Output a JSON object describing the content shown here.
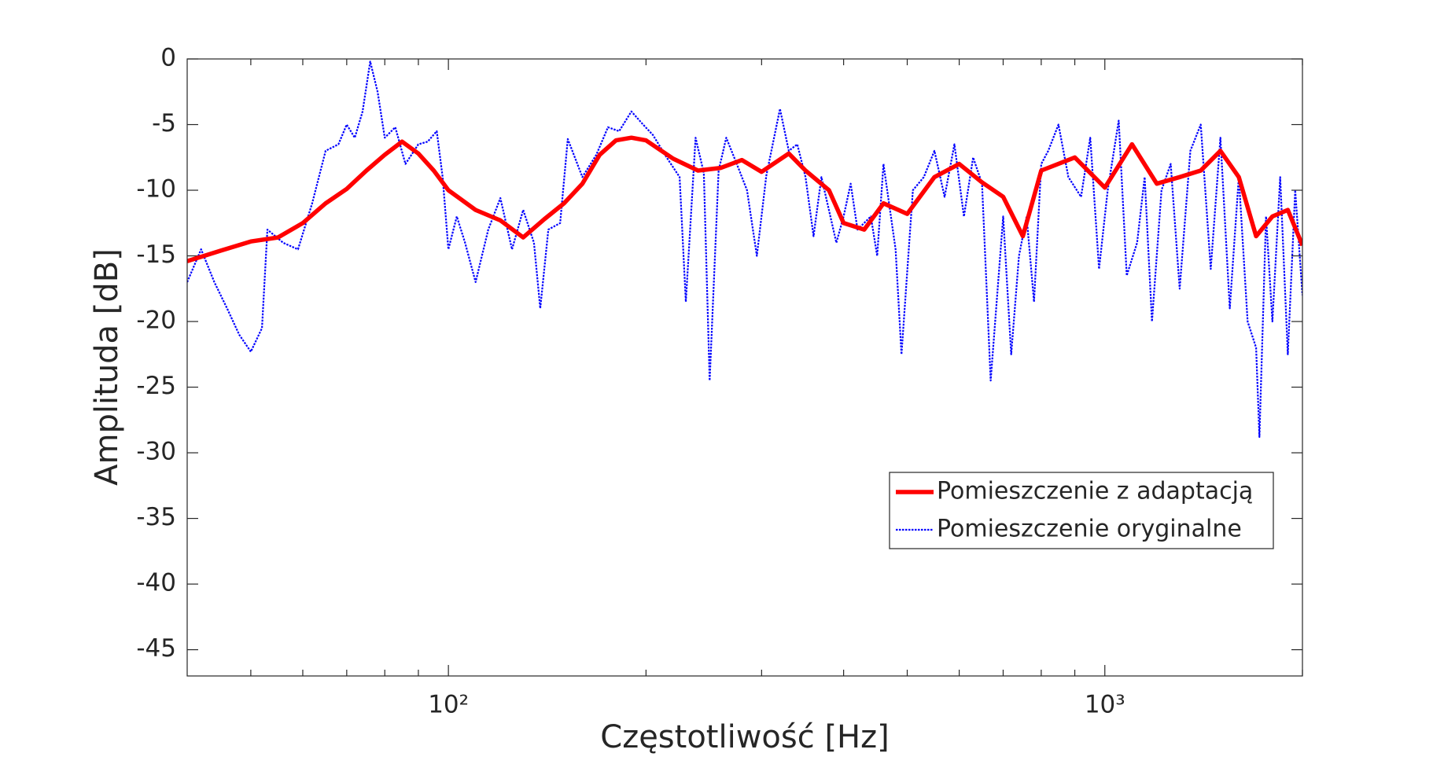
{
  "chart_data": {
    "type": "line",
    "x_label": "Częstotliwość [Hz]",
    "y_label": "Amplituda [dB]",
    "xscale": "log",
    "xlim": [
      40,
      2000
    ],
    "ylim": [
      -47,
      0
    ],
    "xticks": [
      {
        "value": 100,
        "label": "10²"
      },
      {
        "value": 1000,
        "label": "10³"
      }
    ],
    "xminorticks": [
      50,
      60,
      70,
      80,
      90,
      200,
      300,
      400,
      500,
      600,
      700,
      800,
      900,
      2000
    ],
    "yticks": [
      0,
      -5,
      -10,
      -15,
      -20,
      -25,
      -30,
      -35,
      -40,
      -45
    ],
    "legend_location": "east",
    "series": [
      {
        "name": "Pomieszczenie z adaptacją",
        "color": "#ff0000",
        "style": "solid",
        "x": [
          40,
          45,
          50,
          55,
          60,
          65,
          70,
          75,
          80,
          85,
          90,
          95,
          100,
          110,
          120,
          130,
          140,
          150,
          160,
          170,
          180,
          190,
          200,
          220,
          240,
          260,
          280,
          300,
          330,
          350,
          380,
          400,
          430,
          460,
          500,
          550,
          600,
          650,
          700,
          750,
          800,
          900,
          1000,
          1100,
          1200,
          1300,
          1400,
          1500,
          1600,
          1700,
          1800,
          1900,
          2000
        ],
        "values": [
          -15.4,
          -14.6,
          -13.9,
          -13.6,
          -12.5,
          -11.0,
          -9.9,
          -8.5,
          -7.3,
          -6.3,
          -7.2,
          -8.5,
          -10.0,
          -11.5,
          -12.3,
          -13.6,
          -12.2,
          -11.0,
          -9.5,
          -7.3,
          -6.2,
          -6.0,
          -6.2,
          -7.6,
          -8.5,
          -8.3,
          -7.7,
          -8.6,
          -7.2,
          -8.5,
          -10.0,
          -12.5,
          -13.0,
          -11.0,
          -11.8,
          -9.0,
          -8.0,
          -9.4,
          -10.5,
          -13.5,
          -8.5,
          -7.5,
          -9.8,
          -6.5,
          -9.5,
          -9.0,
          -8.5,
          -7.0,
          -9.0,
          -13.5,
          -12.0,
          -11.5,
          -14.2
        ]
      },
      {
        "name": "Pomieszczenie oryginalne",
        "color": "#0000ff",
        "style": "dotted",
        "x": [
          40,
          42,
          44,
          46,
          48,
          50,
          52,
          53,
          56,
          59,
          62,
          65,
          68,
          70,
          72,
          74,
          76,
          78,
          80,
          83,
          86,
          90,
          93,
          96,
          98,
          100,
          103,
          106,
          110,
          115,
          120,
          125,
          130,
          135,
          138,
          142,
          148,
          152,
          160,
          168,
          175,
          182,
          190,
          198,
          205,
          215,
          225,
          230,
          238,
          245,
          250,
          258,
          265,
          275,
          285,
          295,
          305,
          320,
          330,
          340,
          350,
          360,
          370,
          390,
          400,
          410,
          420,
          440,
          450,
          460,
          480,
          490,
          510,
          530,
          550,
          570,
          590,
          610,
          630,
          650,
          670,
          700,
          720,
          740,
          760,
          780,
          800,
          820,
          850,
          880,
          920,
          950,
          980,
          1010,
          1050,
          1080,
          1120,
          1150,
          1180,
          1220,
          1260,
          1300,
          1350,
          1400,
          1450,
          1500,
          1550,
          1600,
          1650,
          1700,
          1720,
          1760,
          1800,
          1850,
          1900,
          1950,
          2000
        ],
        "values": [
          -17,
          -14.5,
          -17,
          -19,
          -21,
          -22.3,
          -20.5,
          -13,
          -14,
          -14.5,
          -11,
          -7,
          -6.5,
          -5,
          -6,
          -4,
          -0.2,
          -2.5,
          -6,
          -5.2,
          -8,
          -6.5,
          -6.3,
          -5.5,
          -9,
          -14.5,
          -12,
          -14,
          -17,
          -13,
          -10.6,
          -14.5,
          -11.5,
          -14,
          -19,
          -13,
          -12.5,
          -6.1,
          -9,
          -7.3,
          -5.2,
          -5.5,
          -4,
          -5,
          -5.8,
          -7.5,
          -9,
          -18.5,
          -6,
          -8.7,
          -24.5,
          -8.5,
          -6,
          -8,
          -10,
          -15,
          -8.9,
          -3.8,
          -7,
          -6.5,
          -9,
          -13.5,
          -9,
          -14,
          -12,
          -9.5,
          -13,
          -12,
          -15,
          -8,
          -14.5,
          -22.5,
          -10,
          -9,
          -7,
          -10.5,
          -6.5,
          -12,
          -7.5,
          -9.5,
          -24.5,
          -12,
          -22.5,
          -15,
          -12,
          -18.5,
          -8,
          -7,
          -5,
          -9,
          -10.5,
          -6,
          -16,
          -10,
          -4.7,
          -16.5,
          -14,
          -9,
          -20,
          -10,
          -8,
          -17.5,
          -7,
          -5,
          -16,
          -6,
          -19,
          -9,
          -20,
          -22,
          -28.8,
          -12,
          -20,
          -9,
          -22.5,
          -10,
          -18
        ]
      }
    ]
  }
}
